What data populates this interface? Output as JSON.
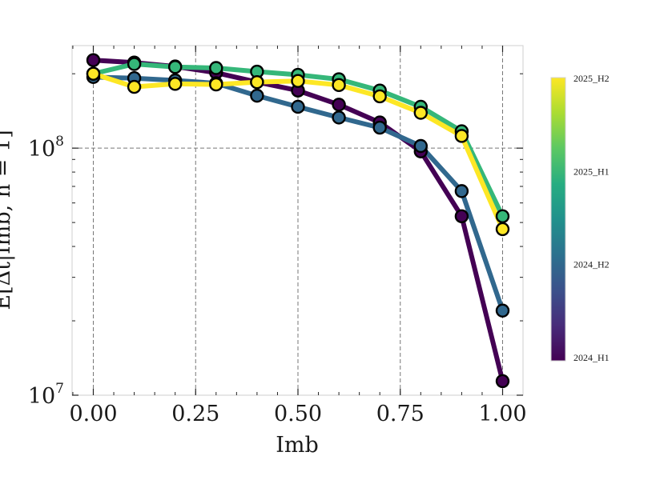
{
  "chart_data": {
    "type": "line",
    "xlabel": "Imb",
    "ylabel": "E[Δt|Imb, n = 1]",
    "xlim": [
      -0.05,
      1.05
    ],
    "ylim": [
      10000000,
      260000000
    ],
    "yscale": "log",
    "grid": "dashed, major ticks",
    "x_ticks": [
      "0.00",
      "0.25",
      "0.50",
      "0.75",
      "1.00"
    ],
    "y_ticks": [
      {
        "value": 10000000,
        "base": "10",
        "exp": "7"
      },
      {
        "value": 100000000,
        "base": "10",
        "exp": "8"
      }
    ],
    "x": [
      0.0,
      0.1,
      0.2,
      0.3,
      0.4,
      0.5,
      0.6,
      0.7,
      0.8,
      0.9,
      1.0
    ],
    "series": [
      {
        "name": "2024_H1",
        "color": "#440154",
        "values": [
          227000000,
          222000000,
          214000000,
          202000000,
          185000000,
          171000000,
          150000000,
          127000000,
          97000000,
          53000000,
          11400000
        ]
      },
      {
        "name": "2024_H2",
        "color": "#31688e",
        "values": [
          194000000,
          192000000,
          188000000,
          183000000,
          163000000,
          147000000,
          133000000,
          121000000,
          102000000,
          67000000,
          22000000
        ]
      },
      {
        "name": "2025_H1",
        "color": "#35b779",
        "values": [
          200000000,
          219000000,
          213000000,
          211000000,
          204000000,
          198000000,
          190000000,
          171000000,
          147000000,
          117000000,
          53000000
        ]
      },
      {
        "name": "2025_H2",
        "color": "#fde725",
        "values": [
          200000000,
          177000000,
          182000000,
          181000000,
          185000000,
          187000000,
          180000000,
          162000000,
          139000000,
          112000000,
          47000000
        ]
      }
    ],
    "colorbar": {
      "labels": [
        "2025_H2",
        "2025_H1",
        "2024_H2",
        "2024_H1"
      ],
      "colormap": [
        "#440154",
        "#472c7a",
        "#3b518b",
        "#2c718e",
        "#21918c",
        "#27ad81",
        "#5cc863",
        "#aadc32",
        "#fde725"
      ]
    }
  }
}
